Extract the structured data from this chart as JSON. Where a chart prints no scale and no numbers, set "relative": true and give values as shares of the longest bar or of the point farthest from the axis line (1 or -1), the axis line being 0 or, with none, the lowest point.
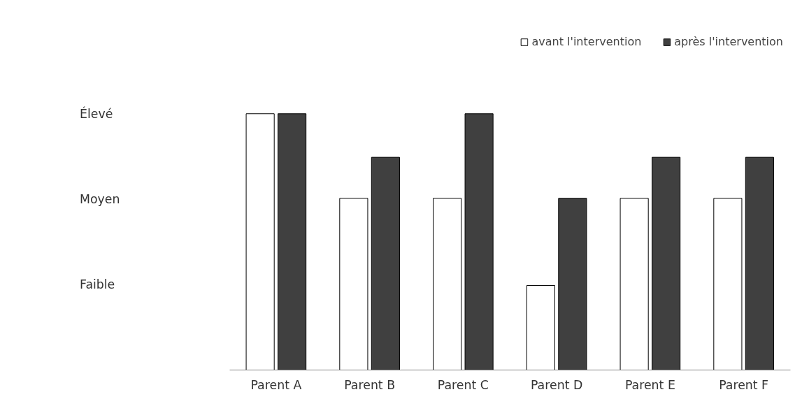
{
  "chart_data": {
    "type": "bar",
    "categories": [
      "Parent A",
      "Parent B",
      "Parent C",
      "Parent D",
      "Parent E",
      "Parent F"
    ],
    "series": [
      {
        "name": "avant l'intervention",
        "color": "#ffffff",
        "values": [
          1,
          0.67,
          0.67,
          0.33,
          0.67,
          0.67
        ]
      },
      {
        "name": "après l'intervention",
        "color": "#404040",
        "values": [
          1,
          0.83,
          1,
          0.67,
          0.83,
          0.83
        ]
      }
    ],
    "relative": true,
    "annotations": [
      "Faible",
      "Moyen",
      "Élevé"
    ],
    "grid": false,
    "legend": "top right"
  }
}
